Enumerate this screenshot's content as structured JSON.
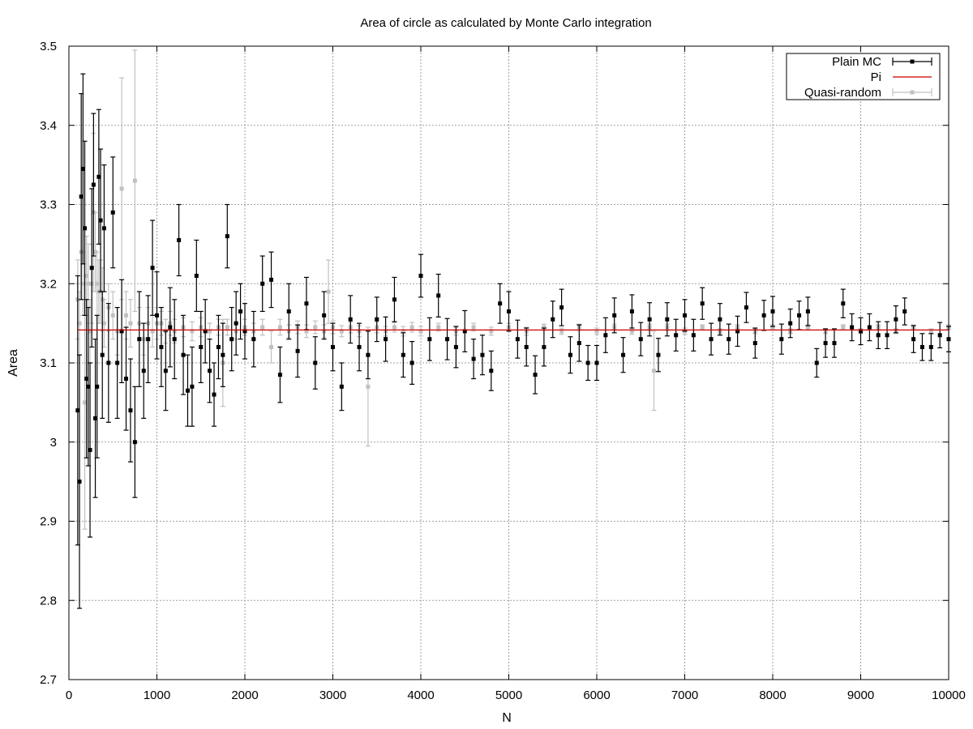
{
  "chart_data": {
    "type": "scatter",
    "title": "Area of circle as calculated by Monte Carlo integration",
    "xlabel": "N",
    "ylabel": "Area",
    "xlim": [
      0,
      10000
    ],
    "ylim": [
      2.7,
      3.5
    ],
    "xticks": [
      "0",
      "1000",
      "2000",
      "3000",
      "4000",
      "5000",
      "6000",
      "7000",
      "8000",
      "9000",
      "10000"
    ],
    "yticks": [
      "2.7",
      "2.8",
      "2.9",
      "3",
      "3.1",
      "3.2",
      "3.3",
      "3.4",
      "3.5"
    ],
    "grid": true,
    "legend_position": "top-right",
    "series": [
      {
        "name": "Plain MC",
        "color": "#000000",
        "style": "points-with-errorbars",
        "x": [
          100,
          120,
          140,
          160,
          180,
          200,
          220,
          240,
          260,
          280,
          300,
          320,
          340,
          360,
          380,
          400,
          450,
          500,
          550,
          600,
          650,
          700,
          750,
          800,
          850,
          900,
          950,
          1000,
          1050,
          1100,
          1150,
          1200,
          1250,
          1300,
          1350,
          1400,
          1450,
          1500,
          1550,
          1600,
          1650,
          1700,
          1750,
          1800,
          1850,
          1900,
          1950,
          2000,
          2100,
          2200,
          2300,
          2400,
          2500,
          2600,
          2700,
          2800,
          2900,
          3000,
          3100,
          3200,
          3300,
          3400,
          3500,
          3600,
          3700,
          3800,
          3900,
          4000,
          4100,
          4200,
          4300,
          4400,
          4500,
          4600,
          4700,
          4800,
          4900,
          5000,
          5100,
          5200,
          5300,
          5400,
          5500,
          5600,
          5700,
          5800,
          5900,
          6000,
          6100,
          6200,
          6300,
          6400,
          6500,
          6600,
          6700,
          6800,
          6900,
          7000,
          7100,
          7200,
          7300,
          7400,
          7500,
          7600,
          7700,
          7800,
          7900,
          8000,
          8100,
          8200,
          8300,
          8400,
          8500,
          8600,
          8700,
          8800,
          8900,
          9000,
          9100,
          9200,
          9300,
          9400,
          9500,
          9600,
          9700,
          9800,
          9900,
          10000
        ],
        "y": [
          3.04,
          2.95,
          3.31,
          3.345,
          3.27,
          3.08,
          3.07,
          2.99,
          3.22,
          3.325,
          3.03,
          3.07,
          3.335,
          3.28,
          3.11,
          3.27,
          3.1,
          3.29,
          3.1,
          3.14,
          3.08,
          3.04,
          3.0,
          3.13,
          3.09,
          3.13,
          3.22,
          3.16,
          3.12,
          3.09,
          3.145,
          3.13,
          3.255,
          3.11,
          3.065,
          3.07,
          3.21,
          3.12,
          3.14,
          3.09,
          3.06,
          3.12,
          3.11,
          3.26,
          3.13,
          3.15,
          3.165,
          3.14,
          3.13,
          3.2,
          3.205,
          3.085,
          3.165,
          3.115,
          3.175,
          3.1,
          3.16,
          3.12,
          3.07,
          3.155,
          3.12,
          3.11,
          3.155,
          3.13,
          3.18,
          3.11,
          3.1,
          3.21,
          3.13,
          3.185,
          3.13,
          3.12,
          3.14,
          3.105,
          3.11,
          3.09,
          3.175,
          3.165,
          3.13,
          3.12,
          3.085,
          3.12,
          3.155,
          3.17,
          3.11,
          3.125,
          3.1,
          3.1,
          3.135,
          3.16,
          3.11,
          3.165,
          3.13,
          3.155,
          3.11,
          3.155,
          3.135,
          3.16,
          3.135,
          3.175,
          3.13,
          3.155,
          3.13,
          3.14,
          3.17,
          3.125,
          3.16,
          3.165,
          3.13,
          3.15,
          3.16,
          3.165,
          3.1,
          3.125,
          3.125,
          3.175,
          3.145,
          3.14,
          3.145,
          3.135,
          3.135,
          3.155,
          3.165,
          3.13,
          3.12,
          3.12,
          3.135,
          3.13
        ],
        "err": [
          0.17,
          0.16,
          0.13,
          0.12,
          0.11,
          0.1,
          0.1,
          0.11,
          0.1,
          0.09,
          0.1,
          0.09,
          0.085,
          0.09,
          0.08,
          0.08,
          0.075,
          0.07,
          0.07,
          0.065,
          0.065,
          0.065,
          0.07,
          0.06,
          0.06,
          0.055,
          0.06,
          0.055,
          0.05,
          0.05,
          0.05,
          0.05,
          0.045,
          0.05,
          0.045,
          0.05,
          0.045,
          0.045,
          0.04,
          0.04,
          0.04,
          0.04,
          0.04,
          0.04,
          0.04,
          0.04,
          0.035,
          0.035,
          0.035,
          0.035,
          0.035,
          0.035,
          0.035,
          0.033,
          0.033,
          0.033,
          0.03,
          0.03,
          0.03,
          0.03,
          0.03,
          0.03,
          0.028,
          0.028,
          0.028,
          0.028,
          0.027,
          0.027,
          0.027,
          0.027,
          0.026,
          0.026,
          0.026,
          0.025,
          0.025,
          0.025,
          0.025,
          0.025,
          0.024,
          0.024,
          0.024,
          0.024,
          0.023,
          0.023,
          0.023,
          0.023,
          0.022,
          0.022,
          0.022,
          0.022,
          0.022,
          0.021,
          0.021,
          0.021,
          0.021,
          0.021,
          0.02,
          0.02,
          0.02,
          0.02,
          0.02,
          0.02,
          0.019,
          0.019,
          0.019,
          0.019,
          0.019,
          0.019,
          0.019,
          0.018,
          0.018,
          0.018,
          0.018,
          0.018,
          0.018,
          0.018,
          0.017,
          0.017,
          0.017,
          0.017,
          0.017,
          0.017,
          0.017,
          0.017,
          0.017,
          0.017,
          0.016,
          0.016
        ]
      },
      {
        "name": "Pi",
        "color": "#cc0000",
        "style": "line",
        "value": 3.14159
      },
      {
        "name": "Quasi-random",
        "color": "#c0c0c0",
        "style": "points-with-errorbars",
        "x": [
          100,
          120,
          140,
          160,
          180,
          200,
          220,
          240,
          260,
          280,
          300,
          320,
          340,
          360,
          380,
          400,
          450,
          500,
          550,
          600,
          650,
          700,
          750,
          800,
          850,
          900,
          950,
          1000,
          1050,
          1100,
          1150,
          1200,
          1300,
          1400,
          1500,
          1600,
          1700,
          1750,
          1800,
          1900,
          2000,
          2100,
          2200,
          2300,
          2400,
          2500,
          2600,
          2700,
          2800,
          2900,
          2950,
          3000,
          3100,
          3200,
          3300,
          3400,
          3500,
          3600,
          3700,
          3800,
          3900,
          4000,
          4200,
          4400,
          4600,
          4800,
          5000,
          5200,
          5400,
          5600,
          5800,
          6000,
          6200,
          6400,
          6600,
          6650,
          6800,
          7000,
          7200,
          7400,
          7600,
          7800,
          8000,
          8200,
          8400,
          8600,
          8800,
          9000,
          9200,
          9400,
          9600,
          9800,
          10000
        ],
        "y": [
          3.18,
          3.15,
          3.24,
          3.2,
          3.05,
          3.21,
          3.2,
          3.14,
          3.2,
          3.29,
          3.24,
          3.2,
          3.19,
          3.19,
          3.18,
          3.15,
          3.17,
          3.16,
          3.14,
          3.32,
          3.16,
          3.15,
          3.33,
          3.15,
          3.13,
          3.15,
          3.14,
          3.15,
          3.15,
          3.14,
          3.15,
          3.14,
          3.145,
          3.14,
          3.145,
          3.14,
          3.145,
          3.1,
          3.145,
          3.14,
          3.145,
          3.14,
          3.145,
          3.12,
          3.145,
          3.14,
          3.145,
          3.14,
          3.145,
          3.14,
          3.19,
          3.145,
          3.14,
          3.145,
          3.14,
          3.07,
          3.145,
          3.14,
          3.145,
          3.14,
          3.145,
          3.14,
          3.145,
          3.14,
          3.145,
          3.14,
          3.145,
          3.14,
          3.145,
          3.14,
          3.145,
          3.14,
          3.145,
          3.14,
          3.145,
          3.09,
          3.145,
          3.14,
          3.145,
          3.14,
          3.145,
          3.14,
          3.145,
          3.14,
          3.145,
          3.14,
          3.145,
          3.14,
          3.145,
          3.14,
          3.145,
          3.14,
          3.145
        ],
        "err": [
          0.05,
          0.04,
          0.06,
          0.04,
          0.16,
          0.05,
          0.05,
          0.04,
          0.05,
          0.1,
          0.05,
          0.04,
          0.04,
          0.04,
          0.04,
          0.03,
          0.03,
          0.03,
          0.03,
          0.14,
          0.03,
          0.03,
          0.165,
          0.02,
          0.02,
          0.02,
          0.02,
          0.02,
          0.015,
          0.015,
          0.015,
          0.015,
          0.012,
          0.012,
          0.012,
          0.01,
          0.01,
          0.055,
          0.01,
          0.01,
          0.01,
          0.01,
          0.01,
          0.02,
          0.01,
          0.008,
          0.008,
          0.008,
          0.008,
          0.008,
          0.04,
          0.008,
          0.007,
          0.007,
          0.007,
          0.075,
          0.007,
          0.006,
          0.006,
          0.006,
          0.006,
          0.006,
          0.005,
          0.005,
          0.005,
          0.005,
          0.005,
          0.005,
          0.004,
          0.004,
          0.004,
          0.004,
          0.004,
          0.004,
          0.004,
          0.05,
          0.004,
          0.004,
          0.003,
          0.003,
          0.003,
          0.003,
          0.003,
          0.003,
          0.003,
          0.003,
          0.003,
          0.003,
          0.003,
          0.003,
          0.003,
          0.003,
          0.003
        ]
      }
    ]
  }
}
